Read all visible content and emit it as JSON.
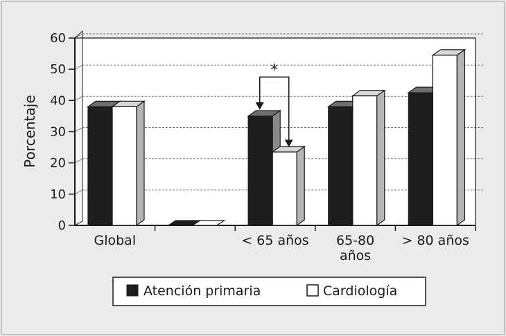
{
  "colors": {
    "background": "#ebebeb",
    "plot_background": "#ffffff",
    "dark_bar": "#1e1e1e",
    "dark_bar_top": "#6e6e6e",
    "dark_bar_side": "#8a8a8a",
    "light_bar": "#ffffff",
    "light_bar_top": "#d8d8d8",
    "light_bar_side": "#b4b4b4",
    "outline": "#1a1a1a"
  },
  "chart_data": {
    "type": "bar",
    "title": "",
    "xlabel": "",
    "ylabel": "Porcentaje",
    "ylim": [
      0,
      60
    ],
    "yticks": [
      "0",
      "10",
      "20",
      "30",
      "40",
      "50",
      "60"
    ],
    "grid": "horizontal dashed",
    "style": "3d",
    "categories": [
      "Global",
      "",
      "< 65 años",
      "65-80 años",
      "> 80 años"
    ],
    "category_lines": [
      [
        "Global"
      ],
      [],
      [
        "< 65 años"
      ],
      [
        "65-80",
        "años"
      ],
      [
        "> 80 años"
      ]
    ],
    "series": [
      {
        "name": "Atención primaria",
        "values": [
          38,
          0,
          35,
          38,
          42.5
        ]
      },
      {
        "name": "Cardiología",
        "values": [
          38,
          0,
          23.5,
          41.5,
          54.5
        ]
      }
    ],
    "legend": {
      "position": "bottom",
      "entries": [
        "Atención primaria",
        "Cardiología"
      ]
    },
    "annotation": {
      "text": "*",
      "category": "< 65 años"
    }
  }
}
